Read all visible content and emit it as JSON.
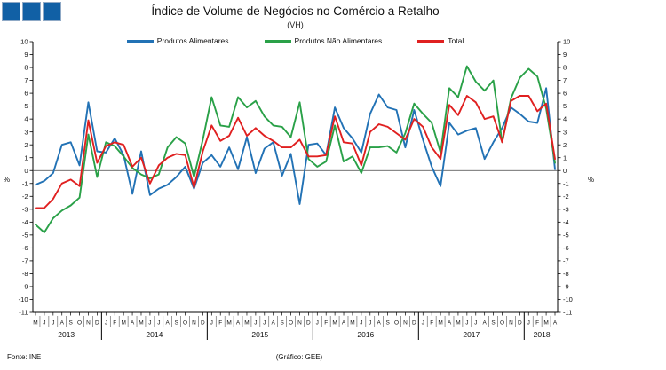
{
  "logo": {
    "squares": 3,
    "color": "#1160a5"
  },
  "footer": {
    "source": "Fonte: INE",
    "credit": "(Gráfico: GEE)"
  },
  "chart_data": {
    "type": "line",
    "title": "Índice de Volume de Negócios no Comércio a Retalho",
    "subtitle": "(VH)",
    "ylabel_left": "%",
    "ylabel_right": "%",
    "ylim": [
      -11,
      10
    ],
    "ytick_step": 1,
    "grid": false,
    "legend_position": "top",
    "years": [
      {
        "label": "2013",
        "months": [
          "M",
          "J",
          "J",
          "A",
          "S",
          "O",
          "N",
          "D"
        ]
      },
      {
        "label": "2014",
        "months": [
          "J",
          "F",
          "M",
          "A",
          "M",
          "J",
          "J",
          "A",
          "S",
          "O",
          "N",
          "D"
        ]
      },
      {
        "label": "2015",
        "months": [
          "J",
          "F",
          "M",
          "A",
          "M",
          "J",
          "J",
          "A",
          "S",
          "O",
          "N",
          "D"
        ]
      },
      {
        "label": "2016",
        "months": [
          "J",
          "F",
          "M",
          "A",
          "M",
          "J",
          "J",
          "A",
          "S",
          "O",
          "N",
          "D"
        ]
      },
      {
        "label": "2017",
        "months": [
          "J",
          "F",
          "M",
          "A",
          "M",
          "J",
          "J",
          "A",
          "S",
          "O",
          "N",
          "D"
        ]
      },
      {
        "label": "2018",
        "months": [
          "J",
          "F",
          "M",
          "A"
        ]
      }
    ],
    "series": [
      {
        "name": "Produtos Alimentares",
        "color": "#2272b5",
        "values": [
          -1.1,
          -0.8,
          -0.2,
          2.0,
          2.2,
          0.4,
          5.3,
          1.5,
          1.4,
          2.5,
          1.2,
          -1.8,
          1.5,
          -1.9,
          -1.4,
          -1.1,
          -0.5,
          0.3,
          -1.4,
          0.6,
          1.2,
          0.3,
          1.8,
          0.1,
          2.6,
          -0.2,
          1.7,
          2.2,
          -0.4,
          1.3,
          -2.6,
          2.0,
          2.1,
          1.2,
          4.9,
          3.3,
          2.5,
          1.4,
          4.4,
          5.9,
          4.9,
          4.7,
          1.8,
          4.7,
          2.4,
          0.3,
          -1.2,
          3.7,
          2.8,
          3.1,
          3.3,
          0.9,
          2.2,
          3.3,
          4.9,
          4.4,
          3.8,
          3.7,
          6.4,
          0.1
        ]
      },
      {
        "name": "Produtos Não Alimentares",
        "color": "#2aa148",
        "values": [
          -4.2,
          -4.8,
          -3.7,
          -3.1,
          -2.7,
          -2.1,
          2.8,
          -0.5,
          2.2,
          1.9,
          1.1,
          0.2,
          -0.3,
          -0.6,
          -0.3,
          1.8,
          2.6,
          2.1,
          -0.5,
          2.4,
          5.7,
          3.5,
          3.4,
          5.7,
          4.9,
          5.4,
          4.2,
          3.5,
          3.4,
          2.6,
          5.3,
          0.9,
          0.3,
          0.7,
          3.5,
          0.7,
          1.1,
          -0.2,
          1.8,
          1.8,
          1.9,
          1.4,
          2.9,
          5.2,
          4.4,
          3.7,
          1.4,
          6.4,
          5.7,
          8.1,
          6.9,
          6.2,
          7.0,
          2.2,
          5.6,
          7.2,
          7.9,
          7.3,
          4.8,
          0.6
        ]
      },
      {
        "name": "Total",
        "color": "#e02020",
        "values": [
          -2.9,
          -2.9,
          -2.2,
          -1.0,
          -0.7,
          -1.2,
          3.9,
          0.6,
          1.9,
          2.2,
          2.0,
          0.3,
          1.0,
          -1.0,
          0.4,
          1.0,
          1.3,
          1.2,
          -1.3,
          1.5,
          3.5,
          2.3,
          2.7,
          4.1,
          2.7,
          3.3,
          2.7,
          2.3,
          1.8,
          1.8,
          2.4,
          1.1,
          1.1,
          1.2,
          4.2,
          2.2,
          2.1,
          0.4,
          3.0,
          3.6,
          3.4,
          2.9,
          2.4,
          4.0,
          3.4,
          1.8,
          0.9,
          5.1,
          4.3,
          5.8,
          5.3,
          4.0,
          4.2,
          2.2,
          5.4,
          5.8,
          5.8,
          4.6,
          5.2,
          0.9
        ]
      }
    ]
  }
}
